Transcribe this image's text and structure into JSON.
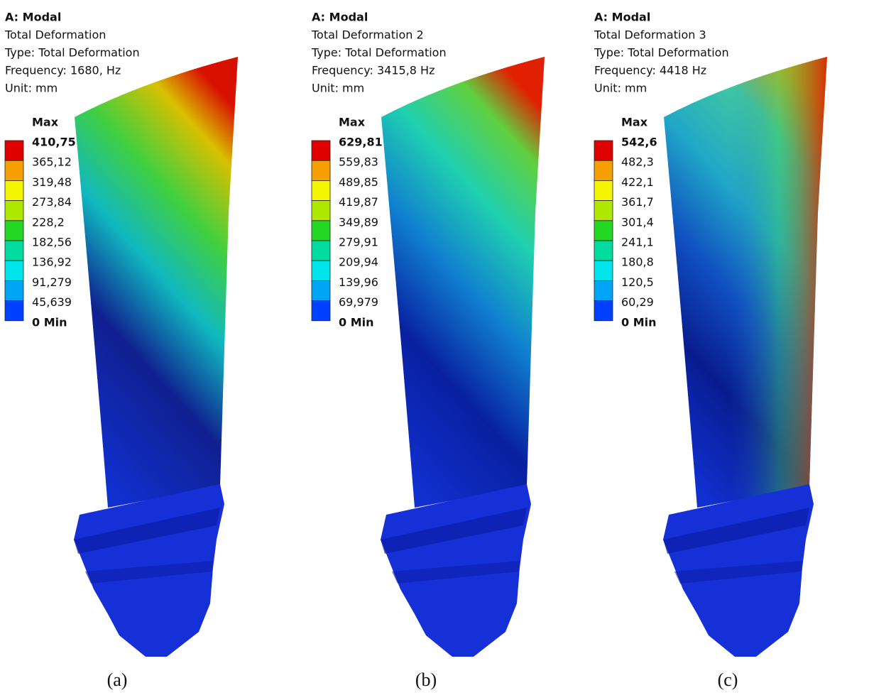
{
  "panels": [
    {
      "title": "A: Modal",
      "lines": [
        "Total Deformation",
        "Type: Total Deformation",
        "Frequency: 1680, Hz",
        "Unit: mm"
      ],
      "legend_header": "Max",
      "legend": [
        "410,75",
        "365,12",
        "319,48",
        "273,84",
        "228,2",
        "182,56",
        "136,92",
        "91,279",
        "45,639",
        "0 Min"
      ],
      "caption": "(a)"
    },
    {
      "title": "A: Modal",
      "lines": [
        "Total Deformation 2",
        "Type: Total Deformation",
        "Frequency: 3415,8 Hz",
        "Unit: mm"
      ],
      "legend_header": "Max",
      "legend": [
        "629,81",
        "559,83",
        "489,85",
        "419,87",
        "349,89",
        "279,91",
        "209,94",
        "139,96",
        "69,979",
        "0 Min"
      ],
      "caption": "(b)"
    },
    {
      "title": "A: Modal",
      "lines": [
        "Total Deformation 3",
        "Type: Total Deformation",
        "Frequency: 4418 Hz",
        "Unit: mm"
      ],
      "legend_header": "Max",
      "legend": [
        "542,6",
        "482,3",
        "422,1",
        "361,7",
        "301,4",
        "241,1",
        "180,8",
        "120,5",
        "60,29",
        "0 Min"
      ],
      "caption": "(c)"
    }
  ]
}
